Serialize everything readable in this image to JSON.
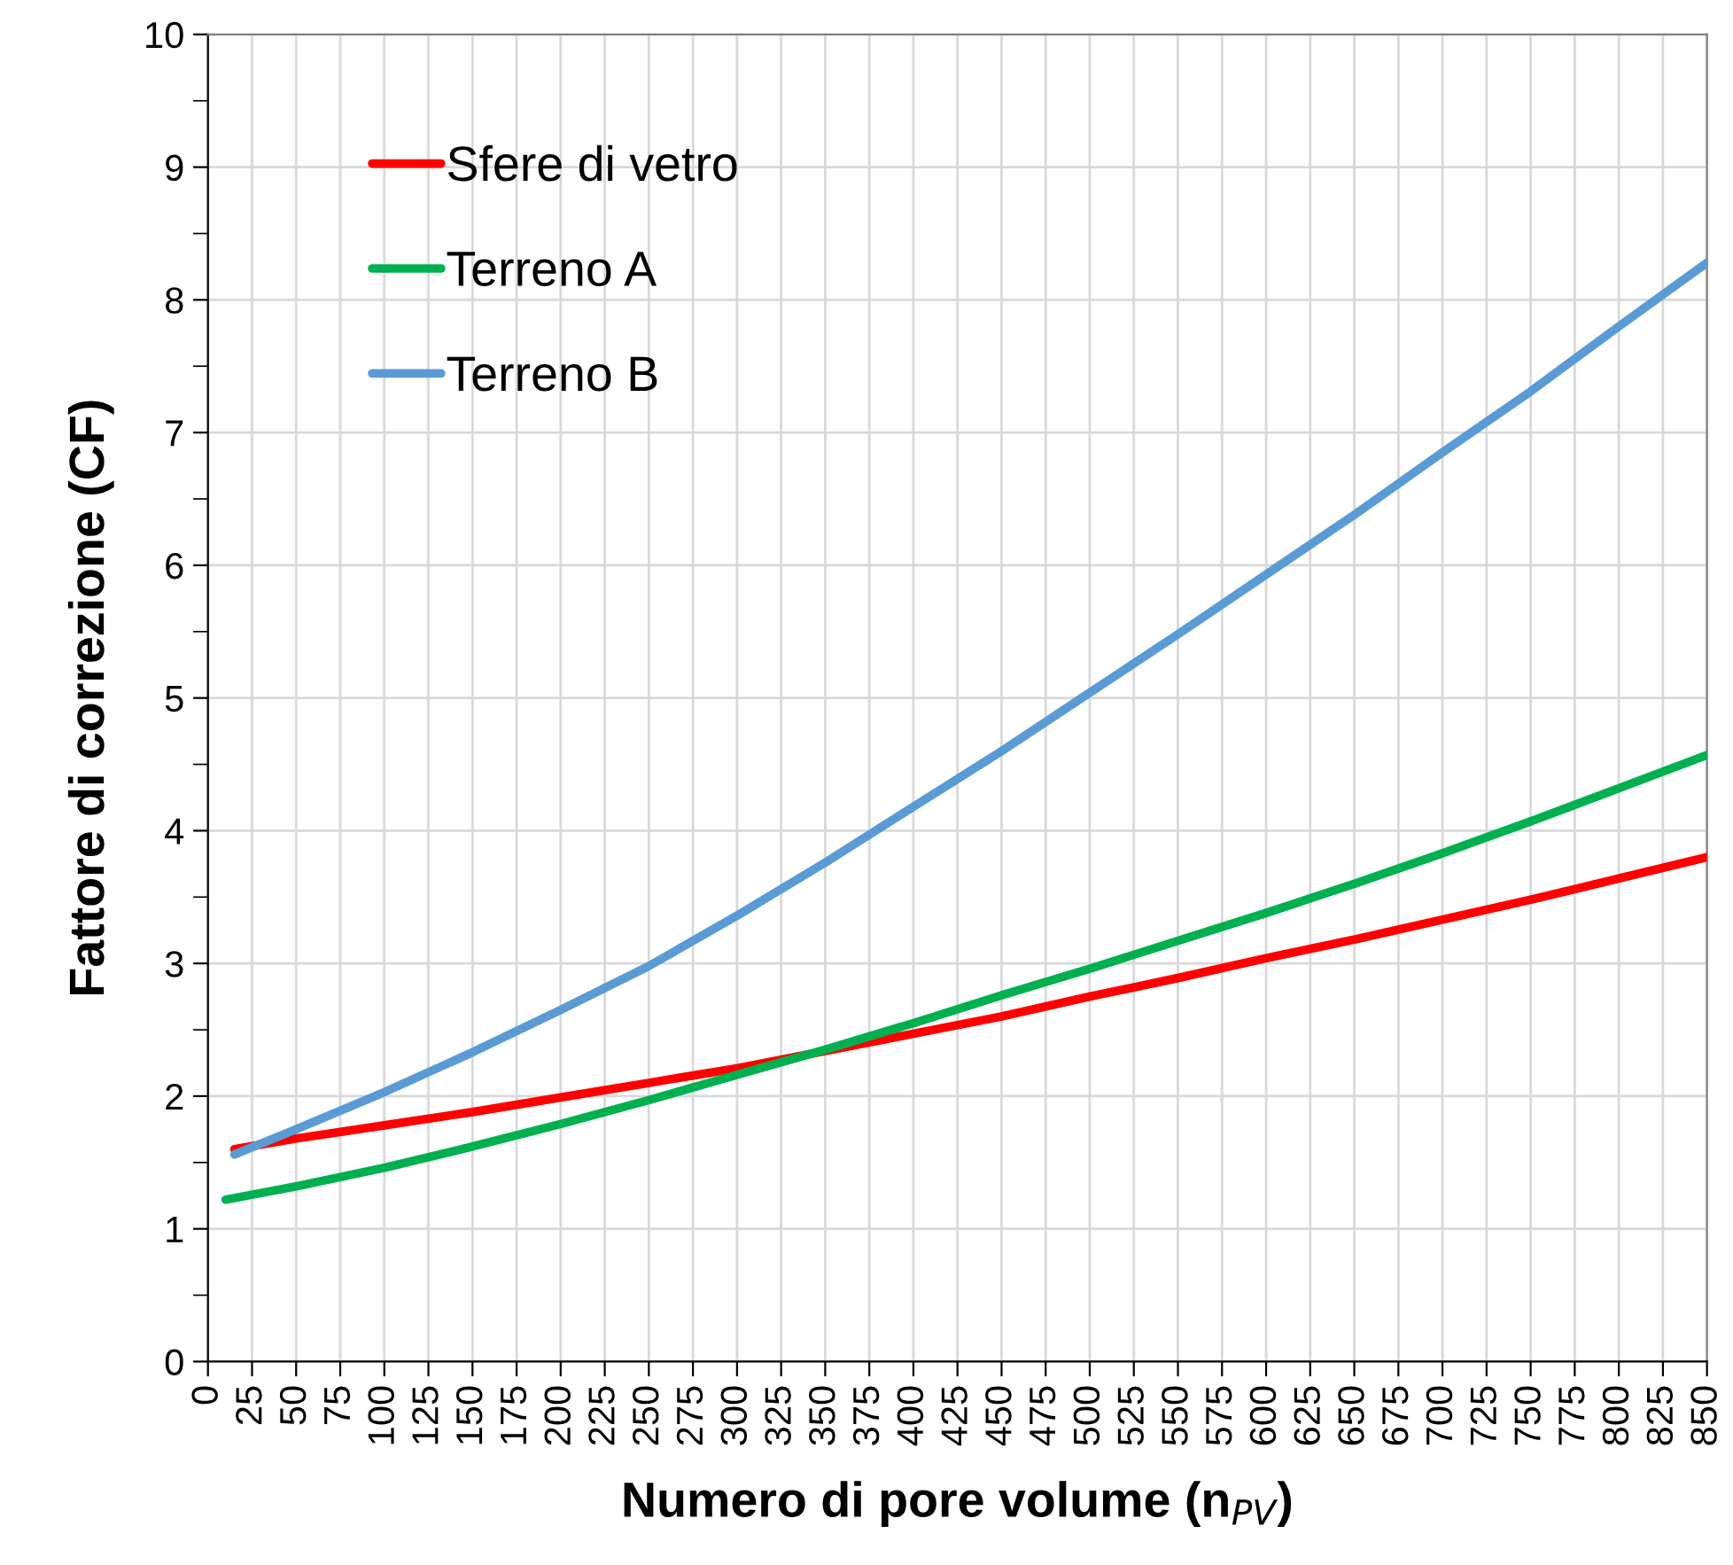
{
  "chart_data": {
    "type": "line",
    "xlabel": "Numero di pore volume (n$_{PV}$)",
    "ylabel": "Fattore di correzione (CF)",
    "xlim": [
      0,
      850
    ],
    "xticks": [
      0,
      25,
      50,
      75,
      100,
      125,
      150,
      175,
      200,
      225,
      250,
      275,
      300,
      325,
      350,
      375,
      400,
      425,
      450,
      475,
      500,
      525,
      550,
      575,
      600,
      625,
      650,
      675,
      700,
      725,
      750,
      775,
      800,
      825,
      850
    ],
    "ylim": [
      0,
      10
    ],
    "yticks": [
      0,
      1,
      2,
      3,
      4,
      5,
      6,
      7,
      8,
      9,
      10
    ],
    "grid": true,
    "legend": "top left",
    "line_style": "solid",
    "marker": "none",
    "series": [
      {
        "name": "Sfere di vetro",
        "color": "#ff0000",
        "x": [
          15,
          50,
          100,
          150,
          200,
          250,
          300,
          350,
          400,
          450,
          500,
          550,
          600,
          650,
          700,
          750,
          800,
          850
        ],
        "values": [
          1.6,
          1.68,
          1.78,
          1.88,
          1.99,
          2.1,
          2.21,
          2.34,
          2.47,
          2.6,
          2.75,
          2.89,
          3.04,
          3.18,
          3.33,
          3.48,
          3.64,
          3.8
        ]
      },
      {
        "name": "Terreno A",
        "color": "#00b050",
        "x": [
          10,
          50,
          100,
          150,
          200,
          250,
          300,
          350,
          400,
          450,
          500,
          550,
          600,
          650,
          700,
          750,
          800,
          850
        ],
        "values": [
          1.22,
          1.32,
          1.46,
          1.62,
          1.79,
          1.97,
          2.16,
          2.35,
          2.55,
          2.76,
          2.96,
          3.17,
          3.38,
          3.6,
          3.83,
          4.07,
          4.32,
          4.57
        ]
      },
      {
        "name": "Terreno B",
        "color": "#5b9bd5",
        "x": [
          15,
          50,
          100,
          150,
          200,
          250,
          300,
          350,
          400,
          450,
          500,
          550,
          600,
          650,
          700,
          750,
          800,
          850
        ],
        "values": [
          1.56,
          1.75,
          2.03,
          2.33,
          2.65,
          2.98,
          3.36,
          3.76,
          4.18,
          4.6,
          5.04,
          5.48,
          5.93,
          6.38,
          6.85,
          7.31,
          7.8,
          8.28
        ]
      }
    ]
  }
}
